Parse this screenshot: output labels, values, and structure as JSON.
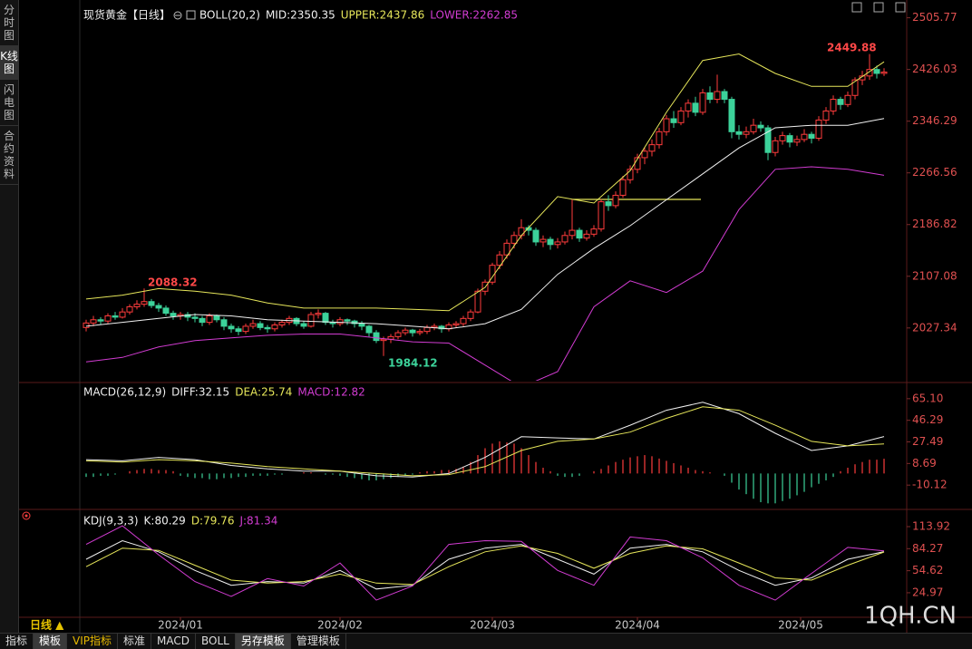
{
  "sidebar_tabs": [
    "分时图",
    "K线图",
    "闪电图",
    "合约资料"
  ],
  "bottom_tabs": [
    "指标",
    "模板",
    "VIP指标",
    "标准",
    "MACD",
    "BOLL",
    "另存模板",
    "管理模板"
  ],
  "period": "日线 ▲",
  "watermark": "1QH.CN",
  "chart_data": [
    {
      "type": "candlestick",
      "title": "现货黄金【日线】",
      "indicator": "BOLL(20,2)",
      "up_color": "#ff3c3c",
      "down_color": "#3cd29a",
      "candles": [
        [
          2028,
          2040,
          2022,
          2035
        ],
        [
          2035,
          2046,
          2030,
          2040
        ],
        [
          2040,
          2044,
          2032,
          2038
        ],
        [
          2038,
          2050,
          2034,
          2046
        ],
        [
          2046,
          2052,
          2040,
          2044
        ],
        [
          2044,
          2058,
          2042,
          2052
        ],
        [
          2052,
          2064,
          2048,
          2060
        ],
        [
          2060,
          2070,
          2056,
          2064
        ],
        [
          2064,
          2088.32,
          2060,
          2068
        ],
        [
          2068,
          2072,
          2058,
          2062
        ],
        [
          2062,
          2066,
          2052,
          2058
        ],
        [
          2058,
          2062,
          2046,
          2050
        ],
        [
          2050,
          2054,
          2040,
          2046
        ],
        [
          2046,
          2052,
          2040,
          2048
        ],
        [
          2048,
          2052,
          2038,
          2044
        ],
        [
          2044,
          2050,
          2036,
          2042
        ],
        [
          2042,
          2046,
          2030,
          2036
        ],
        [
          2036,
          2050,
          2032,
          2046
        ],
        [
          2046,
          2048,
          2036,
          2040
        ],
        [
          2040,
          2044,
          2024,
          2030
        ],
        [
          2030,
          2034,
          2020,
          2026
        ],
        [
          2026,
          2030,
          2016,
          2022
        ],
        [
          2022,
          2034,
          2018,
          2030
        ],
        [
          2030,
          2040,
          2026,
          2034
        ],
        [
          2034,
          2038,
          2024,
          2028
        ],
        [
          2028,
          2032,
          2020,
          2026
        ],
        [
          2026,
          2036,
          2022,
          2032
        ],
        [
          2032,
          2040,
          2028,
          2036
        ],
        [
          2036,
          2046,
          2032,
          2042
        ],
        [
          2042,
          2044,
          2030,
          2034
        ],
        [
          2034,
          2038,
          2026,
          2030
        ],
        [
          2030,
          2052,
          2028,
          2048
        ],
        [
          2048,
          2056,
          2042,
          2050
        ],
        [
          2050,
          2052,
          2032,
          2036
        ],
        [
          2036,
          2040,
          2028,
          2034
        ],
        [
          2034,
          2044,
          2030,
          2040
        ],
        [
          2040,
          2042,
          2032,
          2038
        ],
        [
          2038,
          2040,
          2028,
          2034
        ],
        [
          2034,
          2038,
          2024,
          2030
        ],
        [
          2030,
          2032,
          2014,
          2020
        ],
        [
          2020,
          2024,
          2004,
          2008
        ],
        [
          2008,
          2014,
          1984.12,
          2010
        ],
        [
          2010,
          2018,
          2004,
          2014
        ],
        [
          2014,
          2024,
          2010,
          2020
        ],
        [
          2020,
          2028,
          2016,
          2024
        ],
        [
          2024,
          2026,
          2014,
          2020
        ],
        [
          2020,
          2026,
          2016,
          2022
        ],
        [
          2022,
          2032,
          2018,
          2028
        ],
        [
          2028,
          2034,
          2024,
          2030
        ],
        [
          2030,
          2032,
          2020,
          2026
        ],
        [
          2026,
          2036,
          2022,
          2032
        ],
        [
          2032,
          2038,
          2028,
          2034
        ],
        [
          2034,
          2046,
          2030,
          2042
        ],
        [
          2042,
          2056,
          2038,
          2052
        ],
        [
          2052,
          2088,
          2050,
          2084
        ],
        [
          2084,
          2102,
          2078,
          2098
        ],
        [
          2098,
          2128,
          2094,
          2124
        ],
        [
          2124,
          2146,
          2118,
          2140
        ],
        [
          2140,
          2164,
          2134,
          2158
        ],
        [
          2158,
          2176,
          2150,
          2170
        ],
        [
          2170,
          2195,
          2164,
          2182
        ],
        [
          2182,
          2186,
          2170,
          2178
        ],
        [
          2178,
          2182,
          2154,
          2160
        ],
        [
          2160,
          2170,
          2152,
          2164
        ],
        [
          2164,
          2168,
          2148,
          2156
        ],
        [
          2156,
          2166,
          2150,
          2160
        ],
        [
          2160,
          2176,
          2156,
          2170
        ],
        [
          2170,
          2226,
          2164,
          2178
        ],
        [
          2178,
          2182,
          2160,
          2166
        ],
        [
          2166,
          2178,
          2162,
          2172
        ],
        [
          2172,
          2186,
          2168,
          2180
        ],
        [
          2180,
          2226,
          2176,
          2222
        ],
        [
          2222,
          2232,
          2208,
          2216
        ],
        [
          2216,
          2238,
          2212,
          2232
        ],
        [
          2232,
          2262,
          2228,
          2256
        ],
        [
          2256,
          2278,
          2250,
          2272
        ],
        [
          2272,
          2296,
          2266,
          2290
        ],
        [
          2290,
          2306,
          2280,
          2300
        ],
        [
          2300,
          2318,
          2292,
          2310
        ],
        [
          2310,
          2336,
          2304,
          2330
        ],
        [
          2330,
          2356,
          2324,
          2350
        ],
        [
          2350,
          2362,
          2336,
          2344
        ],
        [
          2344,
          2368,
          2340,
          2362
        ],
        [
          2362,
          2380,
          2352,
          2374
        ],
        [
          2374,
          2384,
          2354,
          2360
        ],
        [
          2360,
          2396,
          2356,
          2390
        ],
        [
          2390,
          2400,
          2374,
          2380
        ],
        [
          2380,
          2418,
          2374,
          2392
        ],
        [
          2392,
          2396,
          2374,
          2380
        ],
        [
          2380,
          2384,
          2320,
          2330
        ],
        [
          2330,
          2340,
          2318,
          2326
        ],
        [
          2326,
          2338,
          2320,
          2330
        ],
        [
          2330,
          2350,
          2326,
          2340
        ],
        [
          2340,
          2346,
          2330,
          2336
        ],
        [
          2336,
          2340,
          2286,
          2298
        ],
        [
          2298,
          2322,
          2292,
          2316
        ],
        [
          2316,
          2330,
          2310,
          2324
        ],
        [
          2324,
          2328,
          2306,
          2314
        ],
        [
          2314,
          2324,
          2308,
          2318
        ],
        [
          2318,
          2334,
          2314,
          2326
        ],
        [
          2326,
          2330,
          2312,
          2320
        ],
        [
          2320,
          2354,
          2316,
          2348
        ],
        [
          2348,
          2368,
          2342,
          2362
        ],
        [
          2362,
          2386,
          2356,
          2380
        ],
        [
          2380,
          2384,
          2364,
          2372
        ],
        [
          2372,
          2392,
          2368,
          2386
        ],
        [
          2386,
          2414,
          2380,
          2410
        ],
        [
          2410,
          2424,
          2402,
          2416
        ],
        [
          2416,
          2449.88,
          2410,
          2426
        ],
        [
          2426,
          2432,
          2412,
          2420
        ],
        [
          2420,
          2428,
          2416,
          2422
        ]
      ],
      "x": [
        0,
        5,
        10,
        15,
        20,
        25,
        30,
        35,
        40,
        45,
        50,
        55,
        60,
        65,
        70,
        75,
        80,
        85,
        90,
        95,
        100,
        105,
        110
      ],
      "series": [
        {
          "name": "MID:2350.35",
          "color": "#f0f0f0",
          "values": [
            2030,
            2036,
            2042,
            2048,
            2046,
            2040,
            2038,
            2036,
            2034,
            2030,
            2026,
            2034,
            2056,
            2110,
            2150,
            2185,
            2225,
            2265,
            2305,
            2336,
            2340,
            2340,
            2350.35
          ]
        },
        {
          "name": "UPPER:2437.86",
          "color": "#e6e65a",
          "values": [
            2072,
            2078,
            2088,
            2084,
            2078,
            2066,
            2058,
            2058,
            2058,
            2056,
            2054,
            2090,
            2170,
            2230,
            2220,
            2270,
            2360,
            2440,
            2450,
            2420,
            2400,
            2400,
            2437.86
          ]
        },
        {
          "name": "LOWER:2262.85",
          "color": "#d23cd2",
          "values": [
            1975,
            1982,
            1998,
            2008,
            2012,
            2016,
            2018,
            2018,
            2012,
            2006,
            2004,
            1970,
            1936,
            1960,
            2060,
            2100,
            2082,
            2115,
            2210,
            2272,
            2276,
            2272,
            2262.85
          ]
        }
      ],
      "ylim": [
        1946,
        2522
      ],
      "yticks": [
        2505.77,
        2426.03,
        2346.29,
        2266.56,
        2186.82,
        2107.08,
        2027.34
      ]
    },
    {
      "type": "line",
      "indicator": "MACD(26,12,9)",
      "x": [
        0,
        5,
        10,
        15,
        20,
        25,
        30,
        35,
        40,
        45,
        50,
        55,
        60,
        65,
        70,
        75,
        80,
        85,
        90,
        95,
        100,
        105,
        110
      ],
      "series": [
        {
          "name": "DIFF:32.15",
          "color": "#f0f0f0",
          "values": [
            12,
            11,
            14,
            12,
            7,
            4,
            2,
            2,
            -2,
            -3,
            0,
            14,
            32,
            31,
            30,
            42,
            55,
            62,
            52,
            35,
            20,
            24,
            32.15
          ]
        },
        {
          "name": "DEA:25.74",
          "color": "#e6e65a",
          "values": [
            11,
            10,
            12,
            11,
            9,
            6,
            4,
            2,
            0,
            -2,
            -1,
            6,
            20,
            28,
            30,
            36,
            48,
            58,
            55,
            42,
            28,
            24,
            25.74
          ]
        }
      ],
      "histogram": {
        "name": "MACD:12.82",
        "color": "#d23cd2",
        "up_color": "#ff3c3c",
        "down_color": "#3cd29a",
        "values": [
          -3,
          -3,
          -2,
          -2,
          -1,
          0,
          2,
          3,
          4,
          4,
          3,
          3,
          2,
          -2,
          -3,
          -4,
          -4,
          -5,
          -5,
          -4,
          -4,
          -3,
          -3,
          -2,
          -2,
          -2,
          -1,
          -1,
          0,
          0,
          1,
          1,
          0,
          -1,
          -1,
          -2,
          -3,
          -4,
          -5,
          -6,
          -6,
          -5,
          -4,
          -3,
          -2,
          -1,
          1,
          2,
          2,
          3,
          3,
          4,
          6,
          10,
          16,
          22,
          26,
          28,
          27,
          26,
          22,
          16,
          10,
          5,
          2,
          -2,
          -3,
          -3,
          -2,
          0,
          2,
          4,
          7,
          10,
          12,
          14,
          15,
          16,
          15,
          13,
          11,
          9,
          7,
          5,
          3,
          2,
          1,
          0,
          -2,
          -8,
          -14,
          -18,
          -22,
          -25,
          -26,
          -26,
          -24,
          -22,
          -19,
          -16,
          -12,
          -9,
          -6,
          -3,
          2,
          5,
          8,
          10,
          12,
          12,
          12.82
        ]
      },
      "ylim": [
        -29.7,
        77.6
      ],
      "yticks": [
        {
          "value": 65.1,
          "label": "65.10"
        },
        46.29,
        27.49,
        8.69,
        -10.12
      ]
    },
    {
      "type": "line",
      "indicator": "KDJ(9,3,3)",
      "x": [
        0,
        5,
        10,
        15,
        20,
        25,
        30,
        35,
        40,
        45,
        50,
        55,
        60,
        65,
        70,
        75,
        80,
        85,
        90,
        95,
        100,
        105,
        110
      ],
      "series": [
        {
          "name": "K:80.29",
          "color": "#f0f0f0",
          "values": [
            70,
            95,
            80,
            55,
            35,
            40,
            38,
            55,
            30,
            35,
            70,
            85,
            90,
            70,
            50,
            85,
            90,
            80,
            55,
            35,
            45,
            70,
            80.29
          ]
        },
        {
          "name": "D:79.76",
          "color": "#e6e65a",
          "values": [
            60,
            85,
            82,
            62,
            42,
            38,
            40,
            50,
            38,
            36,
            60,
            80,
            88,
            78,
            58,
            78,
            88,
            84,
            65,
            45,
            42,
            62,
            79.76
          ]
        },
        {
          "name": "J:81.34",
          "color": "#d23cd2",
          "values": [
            90,
            115,
            76,
            40,
            20,
            44,
            34,
            65,
            15,
            34,
            90,
            95,
            94,
            55,
            35,
            100,
            95,
            72,
            35,
            15,
            51,
            86,
            81.34
          ]
        }
      ],
      "ylim": [
        -6.8,
        132.2
      ],
      "yticks": [
        113.92,
        84.27,
        54.62,
        24.97
      ],
      "xticks": [
        {
          "value": 13,
          "label": "2024/01"
        },
        {
          "value": 35,
          "label": "2024/02"
        },
        {
          "value": 56,
          "label": "2024/03"
        },
        {
          "value": 76,
          "label": "2024/04"
        },
        {
          "value": 98.5,
          "label": "2024/05"
        }
      ]
    }
  ]
}
